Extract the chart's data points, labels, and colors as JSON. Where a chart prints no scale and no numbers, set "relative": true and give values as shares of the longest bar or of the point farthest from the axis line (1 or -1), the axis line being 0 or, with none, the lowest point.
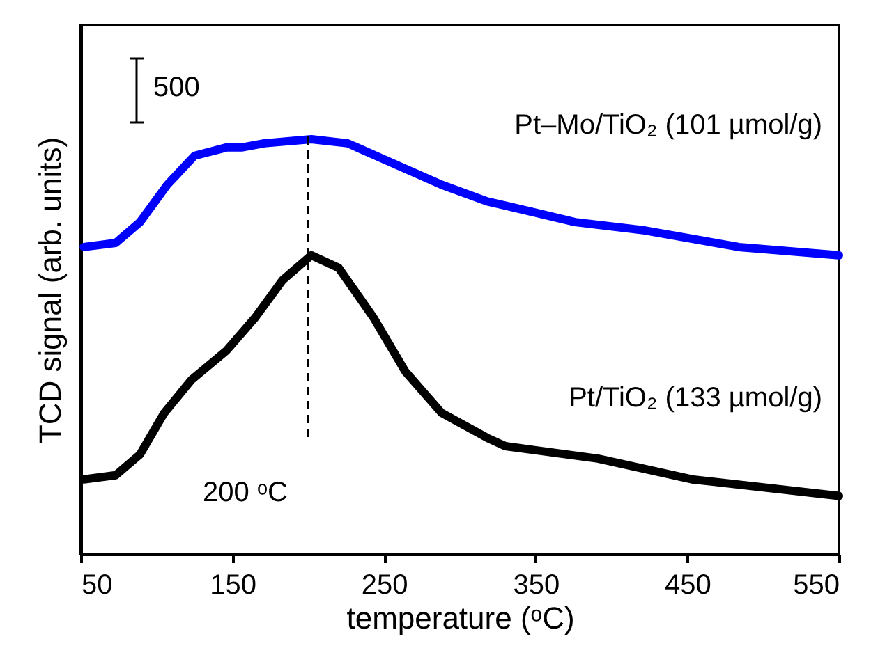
{
  "chart_data": {
    "type": "line",
    "xlabel": "temperature (ᵒC)",
    "ylabel": "TCD signal (arb. units)",
    "relative": true,
    "xlim": [
      50,
      550
    ],
    "xticks": [
      50,
      150,
      250,
      350,
      450,
      550
    ],
    "tick_labels": "x",
    "legend": false,
    "grid": false,
    "line_style": "solid",
    "marker": "none",
    "series": [
      {
        "name": "Pt–Mo/TiO₂ (101 µmol/g)",
        "color": "#0000ff",
        "x": [
          52,
          73,
          89,
          107,
          125,
          146,
          156,
          171,
          202,
          226,
          257,
          288,
          318,
          330,
          376,
          422,
          484,
          550
        ],
        "values": [
          0.74,
          0.75,
          0.8,
          0.89,
          0.96,
          0.98,
          0.98,
          0.99,
          1.0,
          0.99,
          0.94,
          0.89,
          0.85,
          0.84,
          0.8,
          0.78,
          0.74,
          0.72
        ]
      },
      {
        "name": "Pt/TiO₂ (133 µmol/g)",
        "color": "#000000",
        "x": [
          52,
          73,
          89,
          105,
          123,
          146,
          165,
          183,
          202,
          220,
          243,
          264,
          288,
          318,
          330,
          391,
          453,
          550
        ],
        "values": [
          0.18,
          0.19,
          0.24,
          0.34,
          0.42,
          0.49,
          0.57,
          0.66,
          0.72,
          0.69,
          0.57,
          0.44,
          0.34,
          0.28,
          0.26,
          0.23,
          0.18,
          0.14
        ]
      }
    ],
    "ref_lines": [
      {
        "axis": "x",
        "value": 200,
        "line_style": "dashed",
        "color": "#000000"
      }
    ],
    "annotations": [
      "500",
      "200 ᵒC"
    ]
  }
}
